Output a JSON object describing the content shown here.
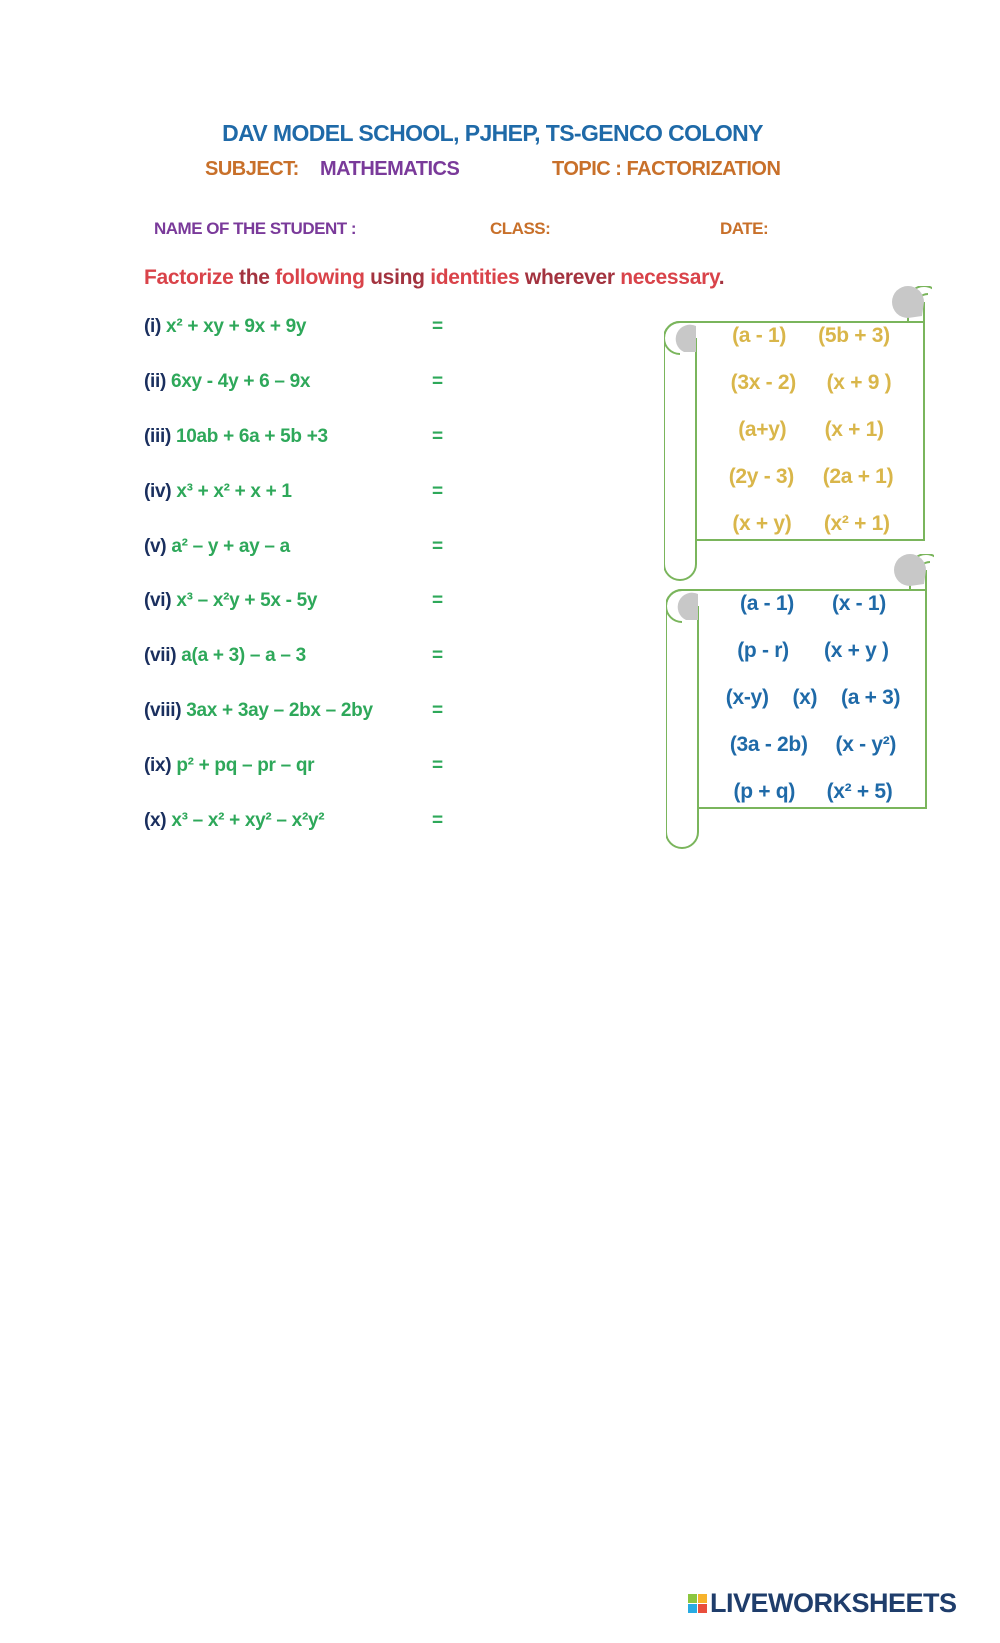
{
  "header": {
    "school": "DAV MODEL SCHOOL, PJHEP, TS-GENCO COLONY",
    "subject_label": "SUBJECT:",
    "subject_value": "MATHEMATICS",
    "topic": "TOPIC : FACTORIZATION",
    "name_label": "NAME OF THE STUDENT :",
    "class_label": "CLASS:",
    "date_label": "DATE:"
  },
  "instruction": [
    {
      "text": "Factorize ",
      "color": "#d9434a"
    },
    {
      "text": "the ",
      "color": "#a3333f"
    },
    {
      "text": "following ",
      "color": "#d9434a"
    },
    {
      "text": "using ",
      "color": "#a3333f"
    },
    {
      "text": "identities ",
      "color": "#d9434a"
    },
    {
      "text": "wherever ",
      "color": "#a3333f"
    },
    {
      "text": "necessary",
      "color": "#d9434a"
    },
    {
      "text": ".",
      "color": "#a3333f"
    }
  ],
  "questions": [
    {
      "label": "(i)",
      "expr": "x² + xy + 9x + 9y",
      "eq": "="
    },
    {
      "label": "(ii)",
      "expr": "6xy - 4y + 6 – 9x",
      "eq": "="
    },
    {
      "label": "(iii)",
      "expr": "10ab + 6a + 5b +3",
      "eq": "="
    },
    {
      "label": "(iv)",
      "expr": "x³ + x² + x + 1",
      "eq": "="
    },
    {
      "label": "(v)",
      "expr": "a² – y + ay – a",
      "eq": "="
    },
    {
      "label": "(vi)",
      "expr": "x³ – x²y + 5x - 5y",
      "eq": "="
    },
    {
      "label": "(vii)",
      "expr": "a(a + 3) – a – 3",
      "eq": "="
    },
    {
      "label": "(viii)",
      "expr": "3ax + 3ay – 2bx – 2by",
      "eq": "="
    },
    {
      "label": "(ix)",
      "expr": "p² + pq – pr  – qr",
      "eq": "="
    },
    {
      "label": "(x)",
      "expr": "x³ – x² + xy² – x²y²",
      "eq": "="
    }
  ],
  "options_box_1": {
    "color": "#d9b64a",
    "rows": [
      [
        "(a - 1)",
        "(5b + 3)"
      ],
      [
        "(3x - 2)",
        "(x + 9 )"
      ],
      [
        "(a+y)",
        "(x + 1)"
      ],
      [
        "(2y - 3)",
        "(2a + 1)"
      ],
      [
        "(x + y)",
        "(x² + 1)"
      ]
    ]
  },
  "options_box_2": {
    "color": "#1f6aa8",
    "rows": [
      [
        "(a - 1)",
        "(x - 1)"
      ],
      [
        "(p - r)",
        "(x + y )"
      ],
      [
        "(x-y)",
        "(x)",
        "(a + 3)"
      ],
      [
        "(3a - 2b)",
        "(x - y²)"
      ],
      [
        "(p + q)",
        "(x² + 5)"
      ]
    ]
  },
  "scroll_colors": {
    "outline": "#7ab55c",
    "curl": "#c8c8c8"
  },
  "footer": {
    "logo_text": "LIVEWORKSHEETS",
    "logo_letters": [
      "L",
      "I",
      "V",
      "E"
    ]
  }
}
